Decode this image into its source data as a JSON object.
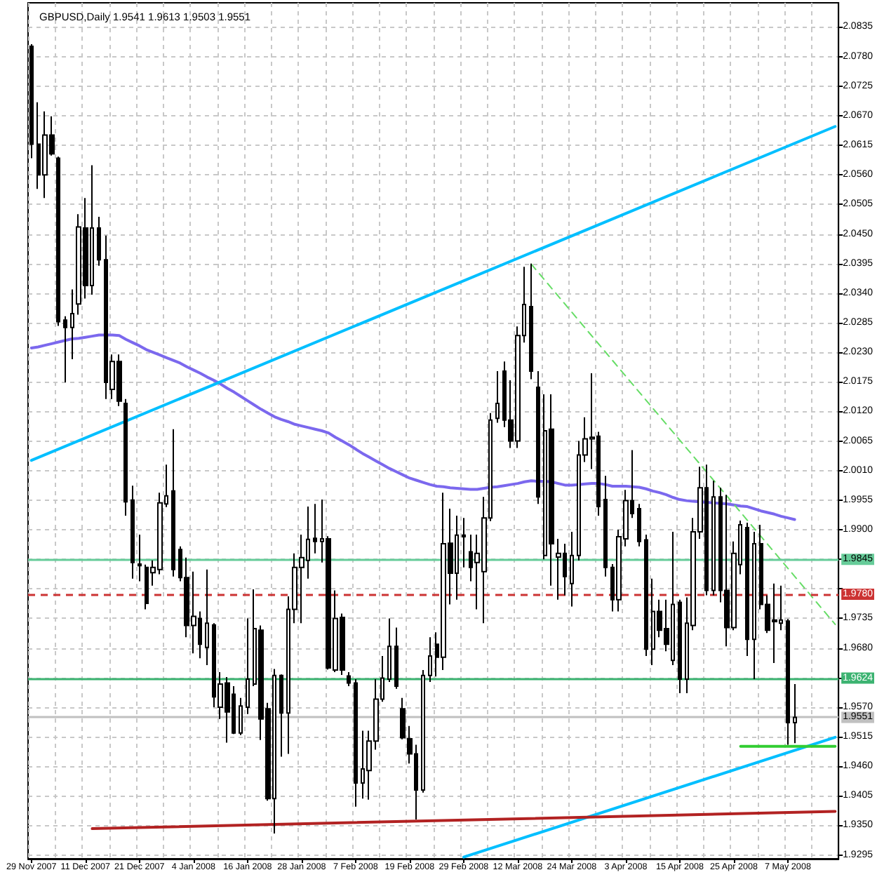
{
  "chart_data": {
    "type": "candlestick",
    "title": "GBPUSD,Daily 1.9541 1.9613 1.9503 1.9551",
    "color": "#000000",
    "categories": [
      "29 Nov 2007",
      null,
      null,
      null,
      null,
      null,
      null,
      null,
      "11 Dec 2007",
      null,
      null,
      null,
      null,
      null,
      null,
      null,
      "21 Dec 2007",
      null,
      null,
      null,
      null,
      null,
      null,
      null,
      "4 Jan 2008",
      null,
      null,
      null,
      null,
      null,
      null,
      null,
      "16 Jan 2008",
      null,
      null,
      null,
      null,
      null,
      null,
      null,
      "28 Jan 2008",
      null,
      null,
      null,
      null,
      null,
      null,
      null,
      "7 Feb 2008",
      null,
      null,
      null,
      null,
      null,
      null,
      null,
      "19 Feb 2008",
      null,
      null,
      null,
      null,
      null,
      null,
      null,
      "29 Feb 2008",
      null,
      null,
      null,
      null,
      null,
      null,
      null,
      "12 Mar 2008",
      null,
      null,
      null,
      null,
      null,
      null,
      null,
      "24 Mar 2008",
      null,
      null,
      null,
      null,
      null,
      null,
      null,
      "3 Apr 2008",
      null,
      null,
      null,
      null,
      null,
      null,
      null,
      "15 Apr 2008",
      null,
      null,
      null,
      null,
      null,
      null,
      null,
      "25 Apr 2008",
      null,
      null,
      null,
      null,
      null,
      null,
      null,
      "7 May 2008",
      null,
      null,
      null,
      null,
      null,
      null,
      null
    ],
    "ohlc": [
      [
        2.0799,
        2.0803,
        2.0591,
        2.0617
      ],
      [
        2.0617,
        2.0695,
        2.0534,
        2.056
      ],
      [
        2.056,
        2.0678,
        2.0517,
        2.0634
      ],
      [
        2.0634,
        2.0669,
        2.0596,
        2.0599
      ],
      [
        2.0591,
        2.0594,
        2.0279,
        2.0287
      ],
      [
        2.029,
        2.0297,
        2.0174,
        2.0276
      ],
      [
        2.0276,
        2.0347,
        2.0217,
        2.0302
      ],
      [
        2.032,
        2.0487,
        2.03,
        2.0463
      ],
      [
        2.0461,
        2.0517,
        2.033,
        2.0354
      ],
      [
        2.0354,
        2.0578,
        2.0337,
        2.0461
      ],
      [
        2.0461,
        2.0482,
        2.0391,
        2.0402
      ],
      [
        2.0402,
        2.0447,
        2.0143,
        2.0174
      ],
      [
        2.0161,
        2.0226,
        2.0143,
        2.0213
      ],
      [
        2.0213,
        2.0226,
        2.013,
        2.0139
      ],
      [
        2.0135,
        2.0143,
        1.9926,
        1.9952
      ],
      [
        1.9955,
        1.9982,
        1.9809,
        1.9839
      ],
      [
        1.9836,
        1.9891,
        1.9804,
        1.9833
      ],
      [
        1.983,
        1.9835,
        1.9752,
        1.9763
      ],
      [
        1.982,
        1.9843,
        1.9796,
        1.983
      ],
      [
        1.9826,
        1.9969,
        1.9817,
        1.995
      ],
      [
        1.9948,
        2.0021,
        1.9942,
        1.9963
      ],
      [
        1.9972,
        2.0087,
        1.9813,
        1.9826
      ],
      [
        1.9863,
        1.9869,
        1.9804,
        1.9811
      ],
      [
        1.9811,
        1.9848,
        1.97,
        1.9722
      ],
      [
        1.9722,
        1.9822,
        1.967,
        1.9739
      ],
      [
        1.9735,
        1.9748,
        1.9661,
        1.9687
      ],
      [
        1.9681,
        1.9826,
        1.9648,
        1.9726
      ],
      [
        1.9723,
        1.9726,
        1.957,
        1.9589
      ],
      [
        1.957,
        1.9635,
        1.9548,
        1.9613
      ],
      [
        1.9615,
        1.9626,
        1.9504,
        1.9561
      ],
      [
        1.9594,
        1.9609,
        1.952,
        1.9522
      ],
      [
        1.9522,
        1.9587,
        1.9518,
        1.9572
      ],
      [
        1.957,
        1.9735,
        1.9557,
        1.9622
      ],
      [
        1.9613,
        1.9789,
        1.9609,
        1.9716
      ],
      [
        1.9713,
        1.9722,
        1.9509,
        1.9548
      ],
      [
        1.9567,
        1.9578,
        1.9396,
        1.94
      ],
      [
        1.94,
        1.9641,
        1.9335,
        1.9629
      ],
      [
        1.9629,
        1.9631,
        1.9478,
        1.9559
      ],
      [
        1.9559,
        1.9776,
        1.9483,
        1.9752
      ],
      [
        1.9752,
        1.9856,
        1.9726,
        1.983
      ],
      [
        1.983,
        1.9891,
        1.9726,
        1.9848
      ],
      [
        1.9843,
        1.9943,
        1.9809,
        1.9882
      ],
      [
        1.9884,
        1.9948,
        1.9856,
        1.9878
      ],
      [
        1.9878,
        1.9956,
        1.9839,
        1.9883
      ],
      [
        1.9883,
        1.9888,
        1.964,
        1.9643
      ],
      [
        1.9639,
        1.9787,
        1.9635,
        1.9735
      ],
      [
        1.9737,
        1.9744,
        1.963,
        1.9639
      ],
      [
        1.9628,
        1.9635,
        1.9609,
        1.9615
      ],
      [
        1.9615,
        1.9622,
        1.9385,
        1.9429
      ],
      [
        1.9429,
        1.9526,
        1.94,
        1.9455
      ],
      [
        1.9452,
        1.9526,
        1.9398,
        1.9507
      ],
      [
        1.9507,
        1.9622,
        1.9491,
        1.9585
      ],
      [
        1.9585,
        1.9665,
        1.958,
        1.9624
      ],
      [
        1.9622,
        1.9735,
        1.9617,
        1.9683
      ],
      [
        1.9683,
        1.9718,
        1.9604,
        1.9609
      ],
      [
        1.9567,
        1.9587,
        1.951,
        1.9513
      ],
      [
        1.9511,
        1.9535,
        1.9465,
        1.9483
      ],
      [
        1.9483,
        1.95,
        1.9361,
        1.9416
      ],
      [
        1.9416,
        1.9639,
        1.9411,
        1.9629
      ],
      [
        1.9629,
        1.97,
        1.9617,
        1.9665
      ],
      [
        1.9687,
        1.9709,
        1.9627,
        1.9663
      ],
      [
        1.9663,
        1.9969,
        1.9639,
        1.9874
      ],
      [
        1.9875,
        1.9939,
        1.9761,
        1.9819
      ],
      [
        1.9819,
        1.9926,
        1.977,
        1.989
      ],
      [
        1.989,
        1.9922,
        1.983,
        1.9887
      ],
      [
        1.9859,
        1.9891,
        1.9804,
        1.983
      ],
      [
        1.9839,
        1.9891,
        1.9752,
        1.9856
      ],
      [
        1.9822,
        1.9961,
        1.9726,
        1.9922
      ],
      [
        1.9922,
        2.0117,
        1.9916,
        2.0104
      ],
      [
        2.0107,
        2.0195,
        2.0099,
        2.0135
      ],
      [
        2.0195,
        2.0213,
        2.0091,
        2.0104
      ],
      [
        2.0104,
        2.0178,
        2.0052,
        2.0065
      ],
      [
        2.0065,
        2.0278,
        2.0052,
        2.0261
      ],
      [
        2.0261,
        2.0389,
        2.0248,
        2.0319
      ],
      [
        2.0315,
        2.0395,
        2.018,
        2.0195
      ],
      [
        2.0165,
        2.0195,
        1.9948,
        1.9961
      ],
      [
        1.9852,
        2.0152,
        1.9845,
        2.0084
      ],
      [
        2.0087,
        2.0152,
        1.9796,
        1.9874
      ],
      [
        1.9849,
        1.9883,
        1.977,
        1.9856
      ],
      [
        1.9856,
        1.9874,
        1.9778,
        1.9813
      ],
      [
        1.98,
        1.9896,
        1.9757,
        1.9852
      ],
      [
        1.9852,
        2.0065,
        1.9843,
        2.0039
      ],
      [
        2.0039,
        2.0109,
        2.0026,
        2.0069
      ],
      [
        2.0069,
        2.0191,
        2.0013,
        2.0072
      ],
      [
        2.0074,
        2.0082,
        1.9926,
        1.9943
      ],
      [
        1.9956,
        2.0,
        1.9813,
        1.983
      ],
      [
        1.983,
        1.9836,
        1.9748,
        1.977
      ],
      [
        1.977,
        1.99,
        1.9748,
        1.9887
      ],
      [
        1.9883,
        1.9974,
        1.9869,
        1.9954
      ],
      [
        1.9954,
        2.0048,
        1.9922,
        1.993
      ],
      [
        1.9939,
        1.9948,
        1.9869,
        1.9878
      ],
      [
        1.9881,
        1.9891,
        1.9665,
        1.9678
      ],
      [
        1.9678,
        1.9809,
        1.9648,
        1.9748
      ],
      [
        1.9748,
        1.977,
        1.97,
        1.9713
      ],
      [
        1.9716,
        1.977,
        1.9674,
        1.9687
      ],
      [
        1.9657,
        1.9896,
        1.9648,
        1.9761
      ],
      [
        1.9765,
        1.977,
        1.9596,
        1.9622
      ],
      [
        1.9622,
        1.9774,
        1.9596,
        1.9726
      ],
      [
        1.9722,
        1.9922,
        1.9713,
        1.9896
      ],
      [
        1.9896,
        2.0017,
        1.9883,
        1.9978
      ],
      [
        1.9978,
        2.0021,
        1.9778,
        1.9787
      ],
      [
        1.9787,
        1.9991,
        1.9778,
        1.9961
      ],
      [
        1.9961,
        1.9978,
        1.9765,
        1.9787
      ],
      [
        1.9787,
        1.9965,
        1.9683,
        1.9718
      ],
      [
        1.9718,
        1.9878,
        1.9713,
        1.9856
      ],
      [
        1.9835,
        1.9917,
        1.9817,
        1.9909
      ],
      [
        1.9904,
        1.9913,
        1.9665,
        1.9696
      ],
      [
        1.9696,
        1.9896,
        1.9622,
        1.9874
      ],
      [
        1.9874,
        1.9909,
        1.9752,
        1.9761
      ],
      [
        1.9761,
        1.9778,
        1.9708,
        1.9713
      ],
      [
        1.9732,
        1.98,
        1.9652,
        1.9729
      ],
      [
        1.9726,
        1.9796,
        1.9713,
        1.9732
      ],
      [
        1.973,
        1.9734,
        1.95,
        1.9541
      ],
      [
        1.9541,
        1.9613,
        1.9503,
        1.9551
      ],
      null,
      null,
      null,
      null,
      null,
      null
    ],
    "colors": [
      "#000000",
      "#000000",
      "#ffffff",
      "#000000",
      "#000000",
      "#000000",
      "#ffffff",
      "#ffffff",
      "#000000",
      "#ffffff",
      "#000000",
      "#000000",
      "#ffffff",
      "#000000",
      "#000000",
      "#000000",
      "#000000",
      "#000000",
      "#ffffff",
      "#ffffff",
      "#ffffff",
      "#000000",
      "#000000",
      "#000000",
      "#ffffff",
      "#000000",
      "#ffffff",
      "#000000",
      "#ffffff",
      "#000000",
      "#000000",
      "#ffffff",
      "#ffffff",
      "#ffffff",
      "#000000",
      "#000000",
      "#ffffff",
      "#000000",
      "#ffffff",
      "#ffffff",
      "#ffffff",
      "#ffffff",
      "#000000",
      "#ffffff",
      "#000000",
      "#ffffff",
      "#000000",
      "#000000",
      "#000000",
      "#ffffff",
      "#ffffff",
      "#ffffff",
      "#ffffff",
      "#ffffff",
      "#000000",
      "#000000",
      "#000000",
      "#000000",
      "#ffffff",
      "#ffffff",
      "#000000",
      "#ffffff",
      "#000000",
      "#ffffff",
      "#000000",
      "#000000",
      "#ffffff",
      "#ffffff",
      "#ffffff",
      "#ffffff",
      "#000000",
      "#000000",
      "#ffffff",
      "#ffffff",
      "#000000",
      "#000000",
      "#ffffff",
      "#000000",
      "#ffffff",
      "#000000",
      "#ffffff",
      "#ffffff",
      "#ffffff",
      "#ffffff",
      "#000000",
      "#000000",
      "#000000",
      "#ffffff",
      "#ffffff",
      "#000000",
      "#000000",
      "#000000",
      "#ffffff",
      "#000000",
      "#000000",
      "#ffffff",
      "#000000",
      "#ffffff",
      "#ffffff",
      "#ffffff",
      "#000000",
      "#ffffff",
      "#000000",
      "#000000",
      "#ffffff",
      "#ffffff",
      "#000000",
      "#ffffff",
      "#000000",
      "#000000",
      "#000000",
      "#ffffff",
      "#000000",
      "#ffffff",
      null,
      null,
      null,
      null,
      null,
      null
    ],
    "series": [
      {
        "type": "line",
        "color": "#7b68ee",
        "values": [
          2.0238,
          2.024,
          2.0243,
          2.0246,
          2.0249,
          2.0252,
          2.0255,
          2.0256,
          2.0258,
          2.026,
          2.0262,
          2.0262,
          2.0262,
          2.0261,
          2.0254,
          2.0248,
          2.0242,
          2.0235,
          2.023,
          2.0225,
          2.022,
          2.0215,
          2.021,
          2.0203,
          2.0197,
          2.0191,
          2.0184,
          2.0178,
          2.0171,
          2.0163,
          2.0156,
          2.0148,
          2.014,
          2.0132,
          2.0124,
          2.0117,
          2.011,
          2.0105,
          2.0101,
          2.0096,
          2.0093,
          2.009,
          2.0087,
          2.0084,
          2.008,
          2.0072,
          2.0065,
          2.0058,
          2.005,
          2.0042,
          2.0035,
          2.0028,
          2.0021,
          2.0014,
          2.0008,
          2.0002,
          1.9996,
          1.9992,
          1.9988,
          1.9984,
          1.9981,
          1.998,
          1.9978,
          1.9977,
          1.9976,
          1.9975,
          1.9975,
          1.9977,
          1.9979,
          1.998,
          1.9982,
          1.9984,
          1.9986,
          1.9989,
          1.9991,
          1.999,
          1.999,
          1.9989,
          1.9986,
          1.9983,
          1.9983,
          1.9984,
          1.9985,
          1.9986,
          1.9986,
          1.9984,
          1.9981,
          1.9981,
          1.9981,
          1.998,
          1.9979,
          1.9976,
          1.9972,
          1.9969,
          1.9965,
          1.996,
          1.9956,
          1.9954,
          1.9953,
          1.9952,
          1.9951,
          1.995,
          1.9949,
          1.9948,
          1.9946,
          1.9944,
          1.9943,
          1.9939,
          1.9935,
          1.9932,
          1.9929,
          1.9925,
          1.9922,
          1.9919,
          null,
          null,
          null,
          null,
          null,
          null
        ]
      },
      {
        "type": "line",
        "color": "#00bfff",
        "values": [
          2.0029,
          null,
          null,
          null,
          null,
          null,
          null,
          null,
          null,
          null,
          null,
          null,
          null,
          null,
          null,
          null,
          null,
          null,
          null,
          null,
          null,
          null,
          null,
          null,
          null,
          null,
          null,
          null,
          null,
          null,
          null,
          null,
          null,
          null,
          null,
          null,
          null,
          null,
          null,
          null,
          null,
          null,
          null,
          null,
          null,
          null,
          null,
          null,
          null,
          null,
          null,
          null,
          null,
          null,
          null,
          null,
          null,
          null,
          null,
          null,
          null,
          null,
          null,
          null,
          null,
          null,
          null,
          null,
          null,
          null,
          null,
          null,
          null,
          null,
          null,
          null,
          null,
          null,
          null,
          null,
          null,
          null,
          null,
          null,
          null,
          null,
          null,
          null,
          null,
          null,
          null,
          null,
          null,
          null,
          null,
          null,
          null,
          null,
          null,
          null,
          null,
          null,
          null,
          null,
          null,
          null,
          null,
          null,
          null,
          null,
          null,
          null,
          null,
          null,
          null,
          null,
          null,
          null,
          null,
          2.065
        ]
      },
      {
        "type": "line",
        "color": "#00bfff",
        "values": [
          null,
          null,
          null,
          null,
          null,
          null,
          null,
          null,
          null,
          null,
          null,
          null,
          null,
          null,
          null,
          null,
          null,
          null,
          null,
          null,
          null,
          null,
          null,
          null,
          null,
          null,
          null,
          null,
          null,
          null,
          null,
          null,
          null,
          null,
          null,
          null,
          null,
          null,
          null,
          null,
          null,
          null,
          null,
          null,
          null,
          null,
          null,
          null,
          null,
          null,
          null,
          null,
          null,
          null,
          null,
          null,
          null,
          null,
          null,
          null,
          null,
          null,
          null,
          null,
          1.9291,
          null,
          null,
          null,
          null,
          null,
          null,
          null,
          null,
          null,
          null,
          null,
          null,
          null,
          null,
          null,
          null,
          null,
          null,
          null,
          null,
          null,
          null,
          null,
          null,
          null,
          null,
          null,
          null,
          null,
          null,
          null,
          null,
          null,
          null,
          null,
          null,
          null,
          null,
          null,
          null,
          null,
          null,
          null,
          null,
          null,
          null,
          null,
          null,
          null,
          null,
          null,
          null,
          null,
          null,
          1.9514
        ]
      },
      {
        "type": "line",
        "color": "#b22222",
        "values": [
          null,
          null,
          null,
          null,
          null,
          null,
          null,
          null,
          null,
          1.9344,
          null,
          null,
          null,
          null,
          null,
          null,
          null,
          null,
          null,
          null,
          null,
          null,
          null,
          null,
          null,
          null,
          null,
          null,
          null,
          null,
          null,
          null,
          null,
          null,
          null,
          null,
          null,
          null,
          null,
          null,
          null,
          null,
          null,
          null,
          null,
          null,
          null,
          null,
          null,
          null,
          null,
          null,
          null,
          null,
          null,
          null,
          null,
          null,
          null,
          null,
          null,
          null,
          null,
          null,
          null,
          null,
          null,
          null,
          null,
          null,
          null,
          null,
          null,
          null,
          null,
          null,
          null,
          null,
          null,
          null,
          null,
          null,
          null,
          null,
          null,
          null,
          null,
          null,
          null,
          null,
          null,
          null,
          null,
          null,
          null,
          null,
          null,
          null,
          null,
          null,
          null,
          null,
          null,
          null,
          null,
          null,
          null,
          null,
          null,
          null,
          null,
          null,
          null,
          null,
          null,
          null,
          null,
          null,
          null,
          1.9376
        ]
      },
      {
        "type": "line",
        "color": "#66dd66",
        "line_style": "dashed",
        "values": [
          null,
          null,
          null,
          null,
          null,
          null,
          null,
          null,
          null,
          null,
          null,
          null,
          null,
          null,
          null,
          null,
          null,
          null,
          null,
          null,
          null,
          null,
          null,
          null,
          null,
          null,
          null,
          null,
          null,
          null,
          null,
          null,
          null,
          null,
          null,
          null,
          null,
          null,
          null,
          null,
          null,
          null,
          null,
          null,
          null,
          null,
          null,
          null,
          null,
          null,
          null,
          null,
          null,
          null,
          null,
          null,
          null,
          null,
          null,
          null,
          null,
          null,
          null,
          null,
          null,
          null,
          null,
          null,
          null,
          null,
          null,
          null,
          null,
          null,
          2.0394,
          null,
          null,
          null,
          null,
          null,
          null,
          null,
          null,
          null,
          null,
          null,
          null,
          null,
          null,
          null,
          null,
          null,
          null,
          null,
          null,
          null,
          null,
          null,
          null,
          null,
          null,
          null,
          null,
          null,
          null,
          null,
          null,
          null,
          null,
          null,
          null,
          null,
          null,
          null,
          null,
          null,
          null,
          null,
          null,
          1.9724
        ]
      },
      {
        "type": "line",
        "color": "#32cd32",
        "values": [
          null,
          null,
          null,
          null,
          null,
          null,
          null,
          null,
          null,
          null,
          null,
          null,
          null,
          null,
          null,
          null,
          null,
          null,
          null,
          null,
          null,
          null,
          null,
          null,
          null,
          null,
          null,
          null,
          null,
          null,
          null,
          null,
          null,
          null,
          null,
          null,
          null,
          null,
          null,
          null,
          null,
          null,
          null,
          null,
          null,
          null,
          null,
          null,
          null,
          null,
          null,
          null,
          null,
          null,
          null,
          null,
          null,
          null,
          null,
          null,
          null,
          null,
          null,
          null,
          null,
          null,
          null,
          null,
          null,
          null,
          null,
          null,
          null,
          null,
          null,
          null,
          null,
          null,
          null,
          null,
          null,
          null,
          null,
          null,
          null,
          null,
          null,
          null,
          null,
          null,
          null,
          null,
          null,
          null,
          null,
          null,
          null,
          null,
          null,
          null,
          null,
          null,
          null,
          null,
          null,
          1.9497,
          null,
          null,
          null,
          null,
          null,
          null,
          null,
          null,
          null,
          null,
          null,
          null,
          null,
          1.9497
        ]
      }
    ],
    "ylim": [
      1.9288,
      2.088
    ],
    "yticks": [
      2.0835,
      {
        "value": 2.078,
        "label": "2.0780"
      },
      2.0725,
      {
        "value": 2.067,
        "label": "2.0670"
      },
      2.0615,
      {
        "value": 2.056,
        "label": "2.0560"
      },
      2.0505,
      {
        "value": 2.045,
        "label": "2.0450"
      },
      2.0395,
      {
        "value": 2.034,
        "label": "2.0340"
      },
      2.0285,
      {
        "value": 2.023,
        "label": "2.0230"
      },
      2.0175,
      {
        "value": 2.012,
        "label": "2.0120"
      },
      2.0065,
      {
        "value": 2.001,
        "label": "2.0010"
      },
      1.9955,
      {
        "value": 1.99,
        "label": "1.9900"
      },
      {
        "value": 1.9845,
        "label": null
      },
      {
        "value": 1.979,
        "label": null
      },
      1.9735,
      {
        "value": 1.968,
        "label": "1.9680"
      },
      {
        "value": 1.9625,
        "label": null
      },
      {
        "value": 1.957,
        "label": "1.9570"
      },
      1.9515,
      {
        "value": 1.946,
        "label": "1.9460"
      },
      1.9405,
      {
        "value": 1.935,
        "label": "1.9350"
      },
      1.9295
    ],
    "grid": true,
    "ref_lines": [
      {
        "axis": "y",
        "value": 1.9845,
        "label": "1.9845",
        "color": "#66cc99"
      },
      {
        "axis": "y",
        "value": 1.978,
        "label": "1.9780",
        "color": "#cc3333",
        "line_style": "dashed"
      },
      {
        "axis": "y",
        "value": 1.9624,
        "label": "1.9624",
        "color": "#3cb371"
      },
      {
        "axis": "y",
        "value": 1.9551,
        "label": "1.9551",
        "color": "#c0c0c0"
      }
    ]
  }
}
